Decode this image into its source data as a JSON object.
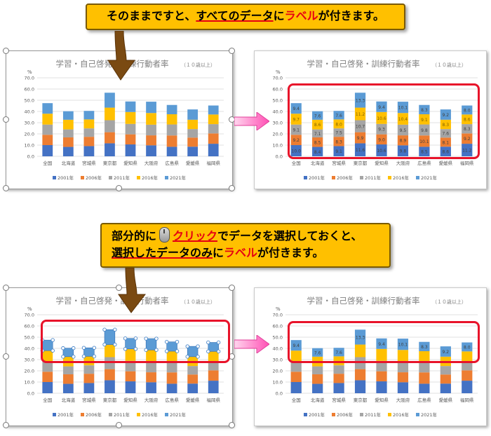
{
  "callout_top": {
    "t1": "そのままですと、",
    "t2": "すべてのデータ",
    "t3": "に",
    "t4": "ラベル",
    "t5": "が付きます。"
  },
  "callout_mid": {
    "line1_a": "部分的に",
    "line1_b": "クリック",
    "line1_c": "でデータを選択しておくと、",
    "line2_a": "選択したデータのみ",
    "line2_b": "に",
    "line2_c": "ラベル",
    "line2_d": "が付きます。"
  },
  "colors": {
    "s2001": "#4472c4",
    "s2006": "#ed7d31",
    "s2011": "#a5a5a5",
    "s2016": "#ffc000",
    "s2021": "#5b9bd5",
    "highlight": "#e8132a",
    "callout": "#ffc000"
  },
  "chart_data": [
    {
      "type": "bar",
      "title": "学習・自己啓発・訓練行動者率",
      "subtitle": "（１０歳以上）",
      "ylabel": "%",
      "ylim": [
        0,
        70
      ],
      "yticks": [
        "0.0",
        "10.0",
        "20.0",
        "30.0",
        "40.0",
        "50.0",
        "60.0",
        "70.0"
      ],
      "categories": [
        "全国",
        "北海道",
        "宮城県",
        "東京都",
        "愛知県",
        "大阪府",
        "広島県",
        "愛媛県",
        "福岡県"
      ],
      "series": [
        {
          "name": "2001年",
          "values": [
            10.0,
            8.4,
            9.1,
            11.6,
            10.6,
            9.8,
            8.5,
            8.6,
            11.2
          ]
        },
        {
          "name": "2006年",
          "values": [
            9.2,
            8.5,
            8.3,
            9.9,
            9.0,
            8.9,
            10.1,
            8.1,
            9.2
          ]
        },
        {
          "name": "2011年",
          "values": [
            9.1,
            7.1,
            7.5,
            10.7,
            9.3,
            9.5,
            9.8,
            7.6,
            8.3
          ]
        },
        {
          "name": "2016年",
          "values": [
            9.7,
            8.6,
            8.0,
            11.2,
            10.6,
            10.4,
            9.1,
            8.3,
            8.6
          ]
        },
        {
          "name": "2021年",
          "values": [
            9.4,
            7.6,
            7.6,
            13.3,
            9.4,
            10.1,
            8.3,
            9.2,
            8.0
          ]
        }
      ]
    }
  ]
}
